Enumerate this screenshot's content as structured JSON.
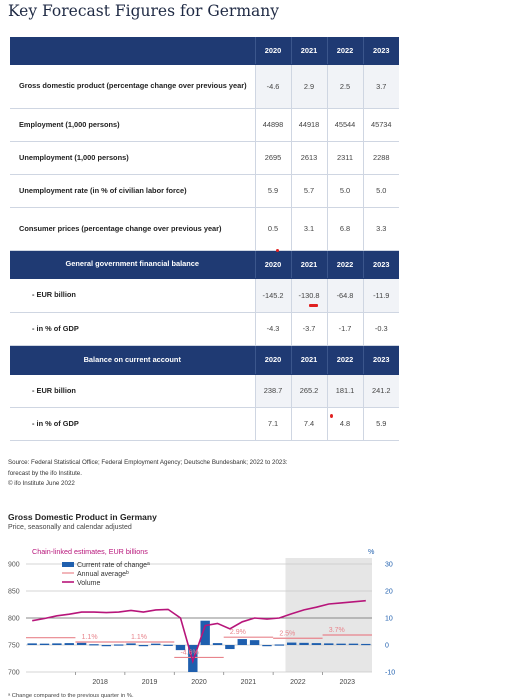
{
  "title": "Key Forecast Figures for Germany",
  "table": {
    "years": [
      "2020",
      "2021",
      "2022",
      "2023"
    ],
    "rows": [
      {
        "label": "Gross domestic product (percentage change over previous year)",
        "values": [
          "-4.6",
          "2.9",
          "2.5",
          "3.7"
        ]
      },
      {
        "label": "Employment (1,000 persons)",
        "values": [
          "44898",
          "44918",
          "45544",
          "45734"
        ]
      },
      {
        "label": "Unemployment (1,000 persons)",
        "values": [
          "2695",
          "2613",
          "2311",
          "2288"
        ]
      },
      {
        "label": "Unemployment rate (in % of civilian labor force)",
        "values": [
          "5.9",
          "5.7",
          "5.0",
          "5.0"
        ]
      },
      {
        "label": "Consumer prices (percentage change over previous year)",
        "values": [
          "0.5",
          "3.1",
          "6.8",
          "3.3"
        ]
      }
    ],
    "balance_header": "General government financial balance",
    "balance_rows": [
      {
        "label": "- EUR billion",
        "values": [
          "-145.2",
          "-130.8",
          "-64.8",
          "-11.9"
        ]
      },
      {
        "label": "- in % of GDP",
        "values": [
          "-4.3",
          "-3.7",
          "-1.7",
          "-0.3"
        ]
      }
    ],
    "account_header": "Balance on current account",
    "account_rows": [
      {
        "label": "- EUR billion",
        "values": [
          "238.7",
          "265.2",
          "181.1",
          "241.2"
        ]
      },
      {
        "label": "- in % of GDP",
        "values": [
          "7.1",
          "7.4",
          "4.8",
          "5.9"
        ]
      }
    ]
  },
  "source_line1": "Source: Federal Statistical Office; Federal Employment Agency; Deutsche Bundesbank; 2022 to 2023:",
  "source_line2": "forecast by the ifo Institute.",
  "source_line3": "© ifo Institute June 2022",
  "chart_data": {
    "type": "bar",
    "title": "Gross Domestic Product in Germany",
    "subtitle": "Price, seasonally and calendar adjusted",
    "left_axis_label": "Chain-linked estimates, EUR billions",
    "right_axis_label": "%",
    "left_ticks": [
      "900",
      "850",
      "800",
      "750",
      "700"
    ],
    "right_ticks": [
      "30",
      "20",
      "10",
      "0",
      "-10"
    ],
    "ylim_left": [
      700,
      900
    ],
    "ylim_right": [
      -10,
      30
    ],
    "x_ticks": [
      "2018",
      "2019",
      "2020",
      "2021",
      "2022",
      "2023"
    ],
    "forecast_shading_start": "2022Q2",
    "legend": [
      "Current rate of change",
      "Annual average",
      "Volume"
    ],
    "legend_superscripts": [
      "a",
      "b",
      ""
    ],
    "footnote": "ᵃ Change compared to the previous quarter in %.",
    "quarters": [
      "2017Q1",
      "2017Q2",
      "2017Q3",
      "2017Q4",
      "2018Q1",
      "2018Q2",
      "2018Q3",
      "2018Q4",
      "2019Q1",
      "2019Q2",
      "2019Q3",
      "2019Q4",
      "2020Q1",
      "2020Q2",
      "2020Q3",
      "2020Q4",
      "2021Q1",
      "2021Q2",
      "2021Q3",
      "2021Q4",
      "2022Q1",
      "2022Q2",
      "2022Q3",
      "2022Q4",
      "2023Q1",
      "2023Q2",
      "2023Q3",
      "2023Q4"
    ],
    "series": [
      {
        "name": "Current rate of change",
        "axis": "right",
        "values": [
          0.6,
          0.5,
          0.6,
          0.7,
          0.8,
          0.3,
          -0.1,
          0.2,
          0.6,
          -0.4,
          0.5,
          0.1,
          -1.9,
          -10.0,
          9.0,
          0.7,
          -1.5,
          2.2,
          1.8,
          -0.1,
          0.2,
          0.9,
          0.8,
          0.7,
          0.6,
          0.5,
          0.5,
          0.4
        ]
      },
      {
        "name": "Annual average",
        "axis": "right",
        "values_by_year": {
          "2017": 2.7,
          "2018": 1.1,
          "2019": 1.1,
          "2020": -4.6,
          "2021": 2.9,
          "2022": 2.5,
          "2023": 3.7
        }
      },
      {
        "name": "Volume",
        "axis": "left",
        "values": [
          795,
          799,
          804,
          807,
          811,
          811,
          810,
          811,
          814,
          811,
          815,
          816,
          800,
          720,
          786,
          790,
          780,
          793,
          800,
          798,
          800,
          808,
          815,
          820,
          826,
          828,
          830,
          832
        ]
      }
    ],
    "annotations": [
      "1.1%",
      "1.1%",
      "-4.6%",
      "2.9%",
      "2.5%",
      "3.7%"
    ]
  },
  "colors": {
    "navy": "#1f3a73",
    "bar": "#1f5fae",
    "volume": "#b7157a",
    "average": "#e8848c",
    "forecast": "#e6e6e6",
    "mark": "#e02020"
  }
}
